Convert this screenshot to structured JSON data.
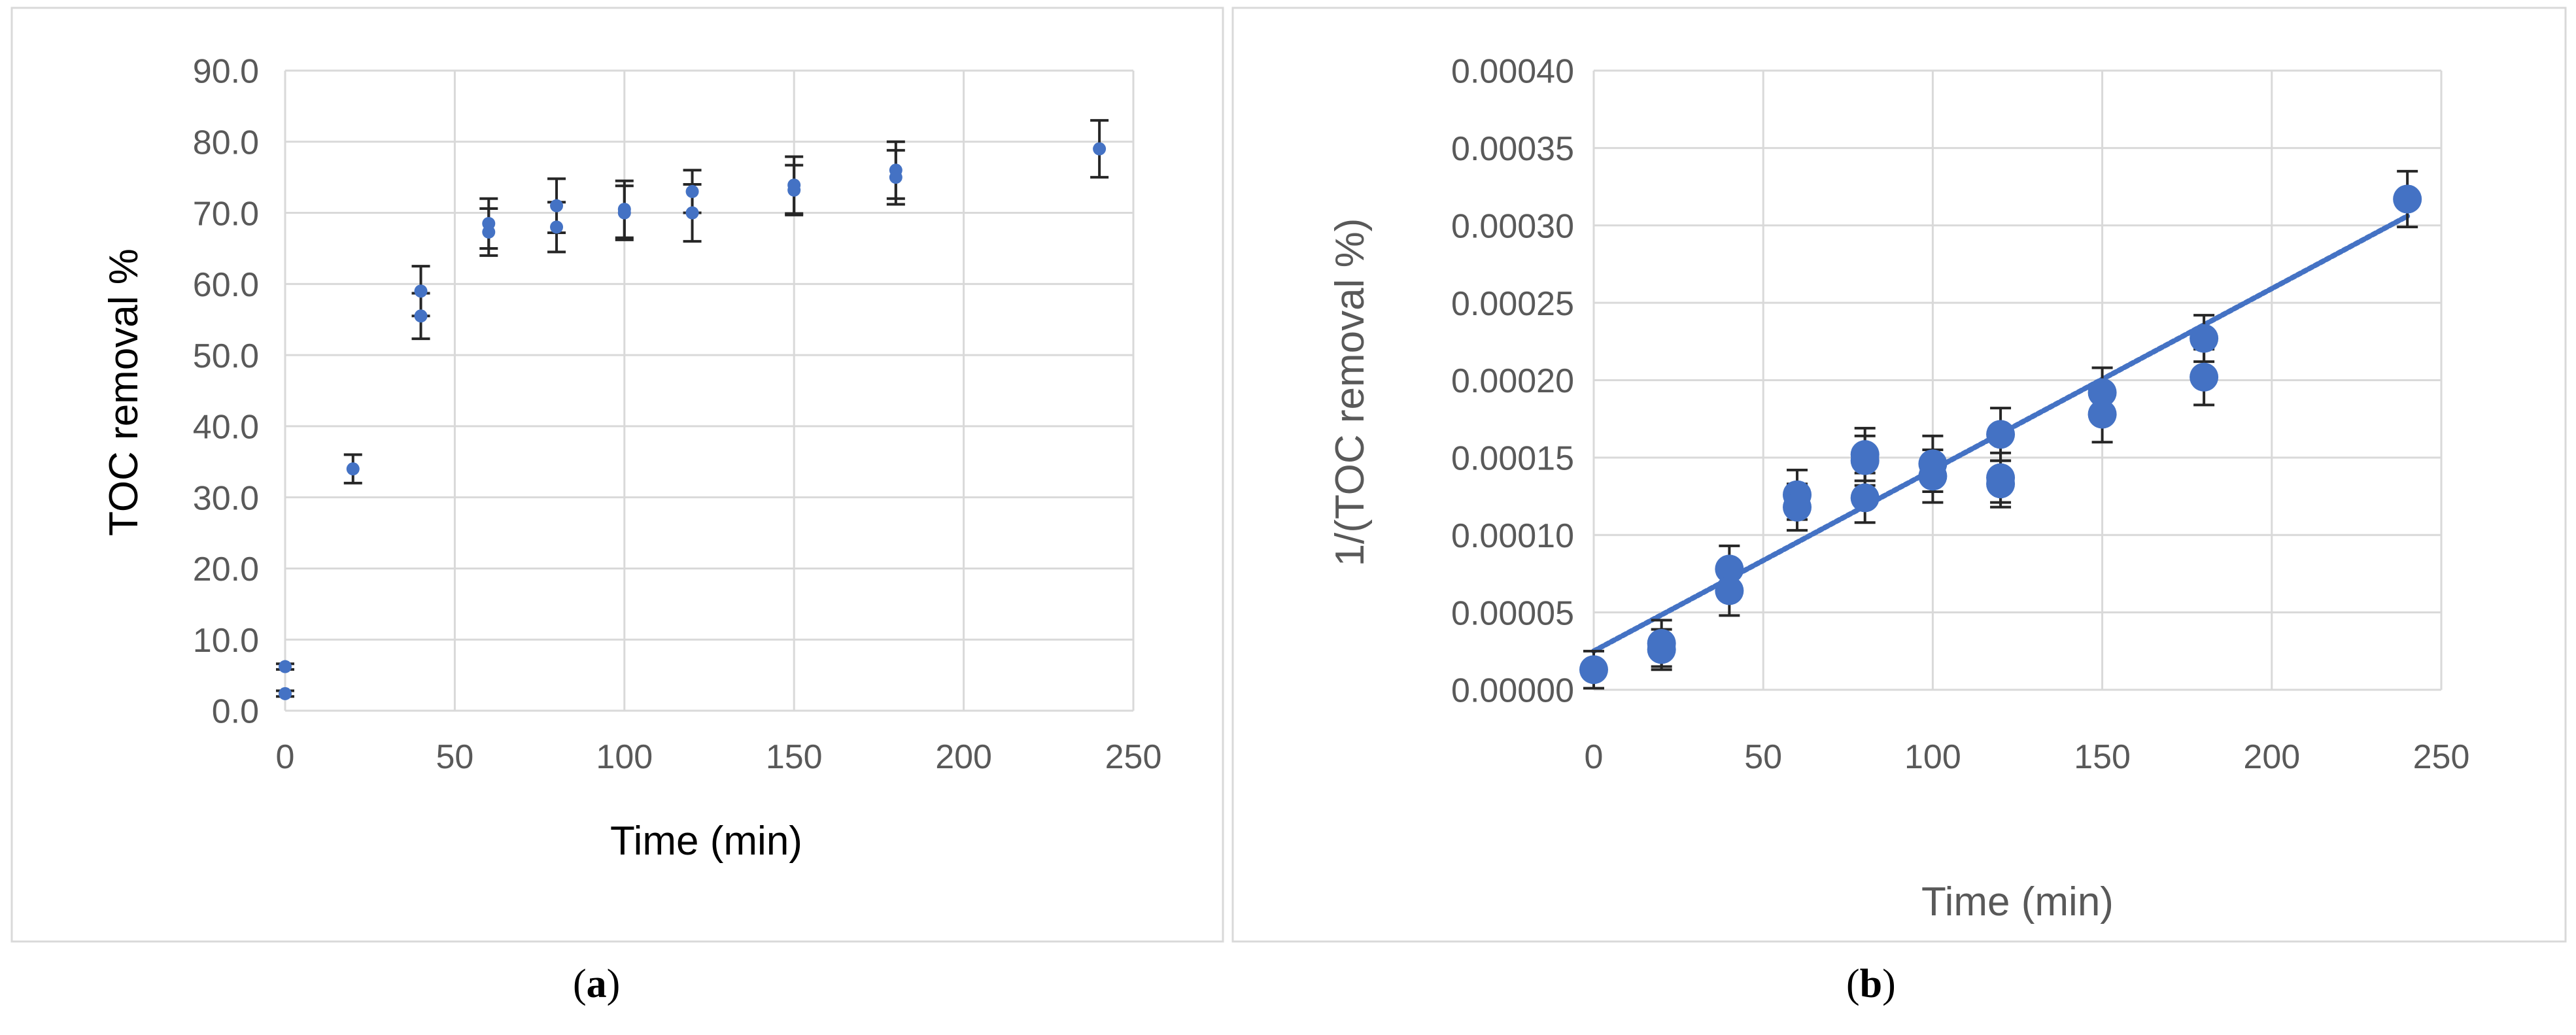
{
  "chart_data": [
    {
      "panel": "a",
      "type": "scatter",
      "title": "",
      "xlabel": "Time (min)",
      "ylabel": "TOC removal %",
      "xlim": [
        0,
        250
      ],
      "ylim": [
        0,
        90
      ],
      "xticks": [
        0,
        50,
        100,
        150,
        200,
        250
      ],
      "yticks": [
        0,
        10,
        20,
        30,
        40,
        50,
        60,
        70,
        80,
        90
      ],
      "xtick_labels": [
        "0",
        "50",
        "100",
        "150",
        "200",
        "250"
      ],
      "ytick_labels": [
        "0.0",
        "10.0",
        "20.0",
        "30.0",
        "40.0",
        "50.0",
        "60.0",
        "70.0",
        "80.0",
        "90.0"
      ],
      "grid": true,
      "legend": "none",
      "marker_color": "#4472C4",
      "points": [
        {
          "x": 0,
          "y": 6.2,
          "err": 0.4
        },
        {
          "x": 0,
          "y": 2.4,
          "err": 0.4
        },
        {
          "x": 20,
          "y": 34.0,
          "err": 2.0
        },
        {
          "x": 40,
          "y": 59.0,
          "err": 3.5
        },
        {
          "x": 40,
          "y": 55.5,
          "err": 3.2
        },
        {
          "x": 60,
          "y": 68.5,
          "err": 3.5
        },
        {
          "x": 60,
          "y": 67.3,
          "err": 3.3
        },
        {
          "x": 80,
          "y": 71.0,
          "err": 3.8
        },
        {
          "x": 80,
          "y": 68.0,
          "err": 3.5
        },
        {
          "x": 100,
          "y": 70.5,
          "err": 4.0
        },
        {
          "x": 100,
          "y": 70.0,
          "err": 3.8
        },
        {
          "x": 120,
          "y": 73.0,
          "err": 3.0
        },
        {
          "x": 120,
          "y": 70.0,
          "err": 4.0
        },
        {
          "x": 150,
          "y": 73.9,
          "err": 4.0
        },
        {
          "x": 150,
          "y": 73.2,
          "err": 3.5
        },
        {
          "x": 180,
          "y": 76.0,
          "err": 4.0
        },
        {
          "x": 180,
          "y": 75.0,
          "err": 3.8
        },
        {
          "x": 240,
          "y": 79.0,
          "err": 4.0
        }
      ]
    },
    {
      "panel": "b",
      "type": "scatter",
      "title": "",
      "xlabel": "Time (min)",
      "ylabel": "1/(TOC removal %)",
      "xlim": [
        0,
        250
      ],
      "ylim": [
        0,
        0.0004
      ],
      "xticks": [
        0,
        50,
        100,
        150,
        200,
        250
      ],
      "yticks": [
        0,
        5e-05,
        0.0001,
        0.00015,
        0.0002,
        0.00025,
        0.0003,
        0.00035,
        0.0004
      ],
      "xtick_labels": [
        "0",
        "50",
        "100",
        "150",
        "200",
        "250"
      ],
      "ytick_labels": [
        "0.00000",
        "0.00005",
        "0.00010",
        "0.00015",
        "0.00020",
        "0.00025",
        "0.00030",
        "0.00035",
        "0.00040"
      ],
      "grid": true,
      "legend": "none",
      "marker_color": "#4472C4",
      "trendline": {
        "type": "linear",
        "x": [
          0,
          240
        ],
        "y": [
          2.5e-05,
          0.000306
        ]
      },
      "points": [
        {
          "x": 0,
          "y": 1.3e-05,
          "err": 1.2e-05
        },
        {
          "x": 20,
          "y": 3e-05,
          "err": 1.5e-05
        },
        {
          "x": 20,
          "y": 2.6e-05,
          "err": 1.3e-05
        },
        {
          "x": 40,
          "y": 7.8e-05,
          "err": 1.5e-05
        },
        {
          "x": 40,
          "y": 6.4e-05,
          "err": 1.6e-05
        },
        {
          "x": 60,
          "y": 0.000126,
          "err": 1.6e-05
        },
        {
          "x": 60,
          "y": 0.000118,
          "err": 1.5e-05
        },
        {
          "x": 80,
          "y": 0.000152,
          "err": 1.7e-05
        },
        {
          "x": 80,
          "y": 0.000148,
          "err": 1.6e-05
        },
        {
          "x": 80,
          "y": 0.000124,
          "err": 1.6e-05
        },
        {
          "x": 100,
          "y": 0.000146,
          "err": 1.8e-05
        },
        {
          "x": 100,
          "y": 0.000138,
          "err": 1.7e-05
        },
        {
          "x": 120,
          "y": 0.000165,
          "err": 1.7e-05
        },
        {
          "x": 120,
          "y": 0.000137,
          "err": 1.6e-05
        },
        {
          "x": 120,
          "y": 0.000133,
          "err": 1.5e-05
        },
        {
          "x": 150,
          "y": 0.000192,
          "err": 1.6e-05
        },
        {
          "x": 150,
          "y": 0.000178,
          "err": 1.8e-05
        },
        {
          "x": 180,
          "y": 0.000227,
          "err": 1.5e-05
        },
        {
          "x": 180,
          "y": 0.000202,
          "err": 1.8e-05
        },
        {
          "x": 240,
          "y": 0.000317,
          "err": 1.8e-05
        }
      ]
    }
  ],
  "captions": {
    "a": "a",
    "b": "b"
  }
}
